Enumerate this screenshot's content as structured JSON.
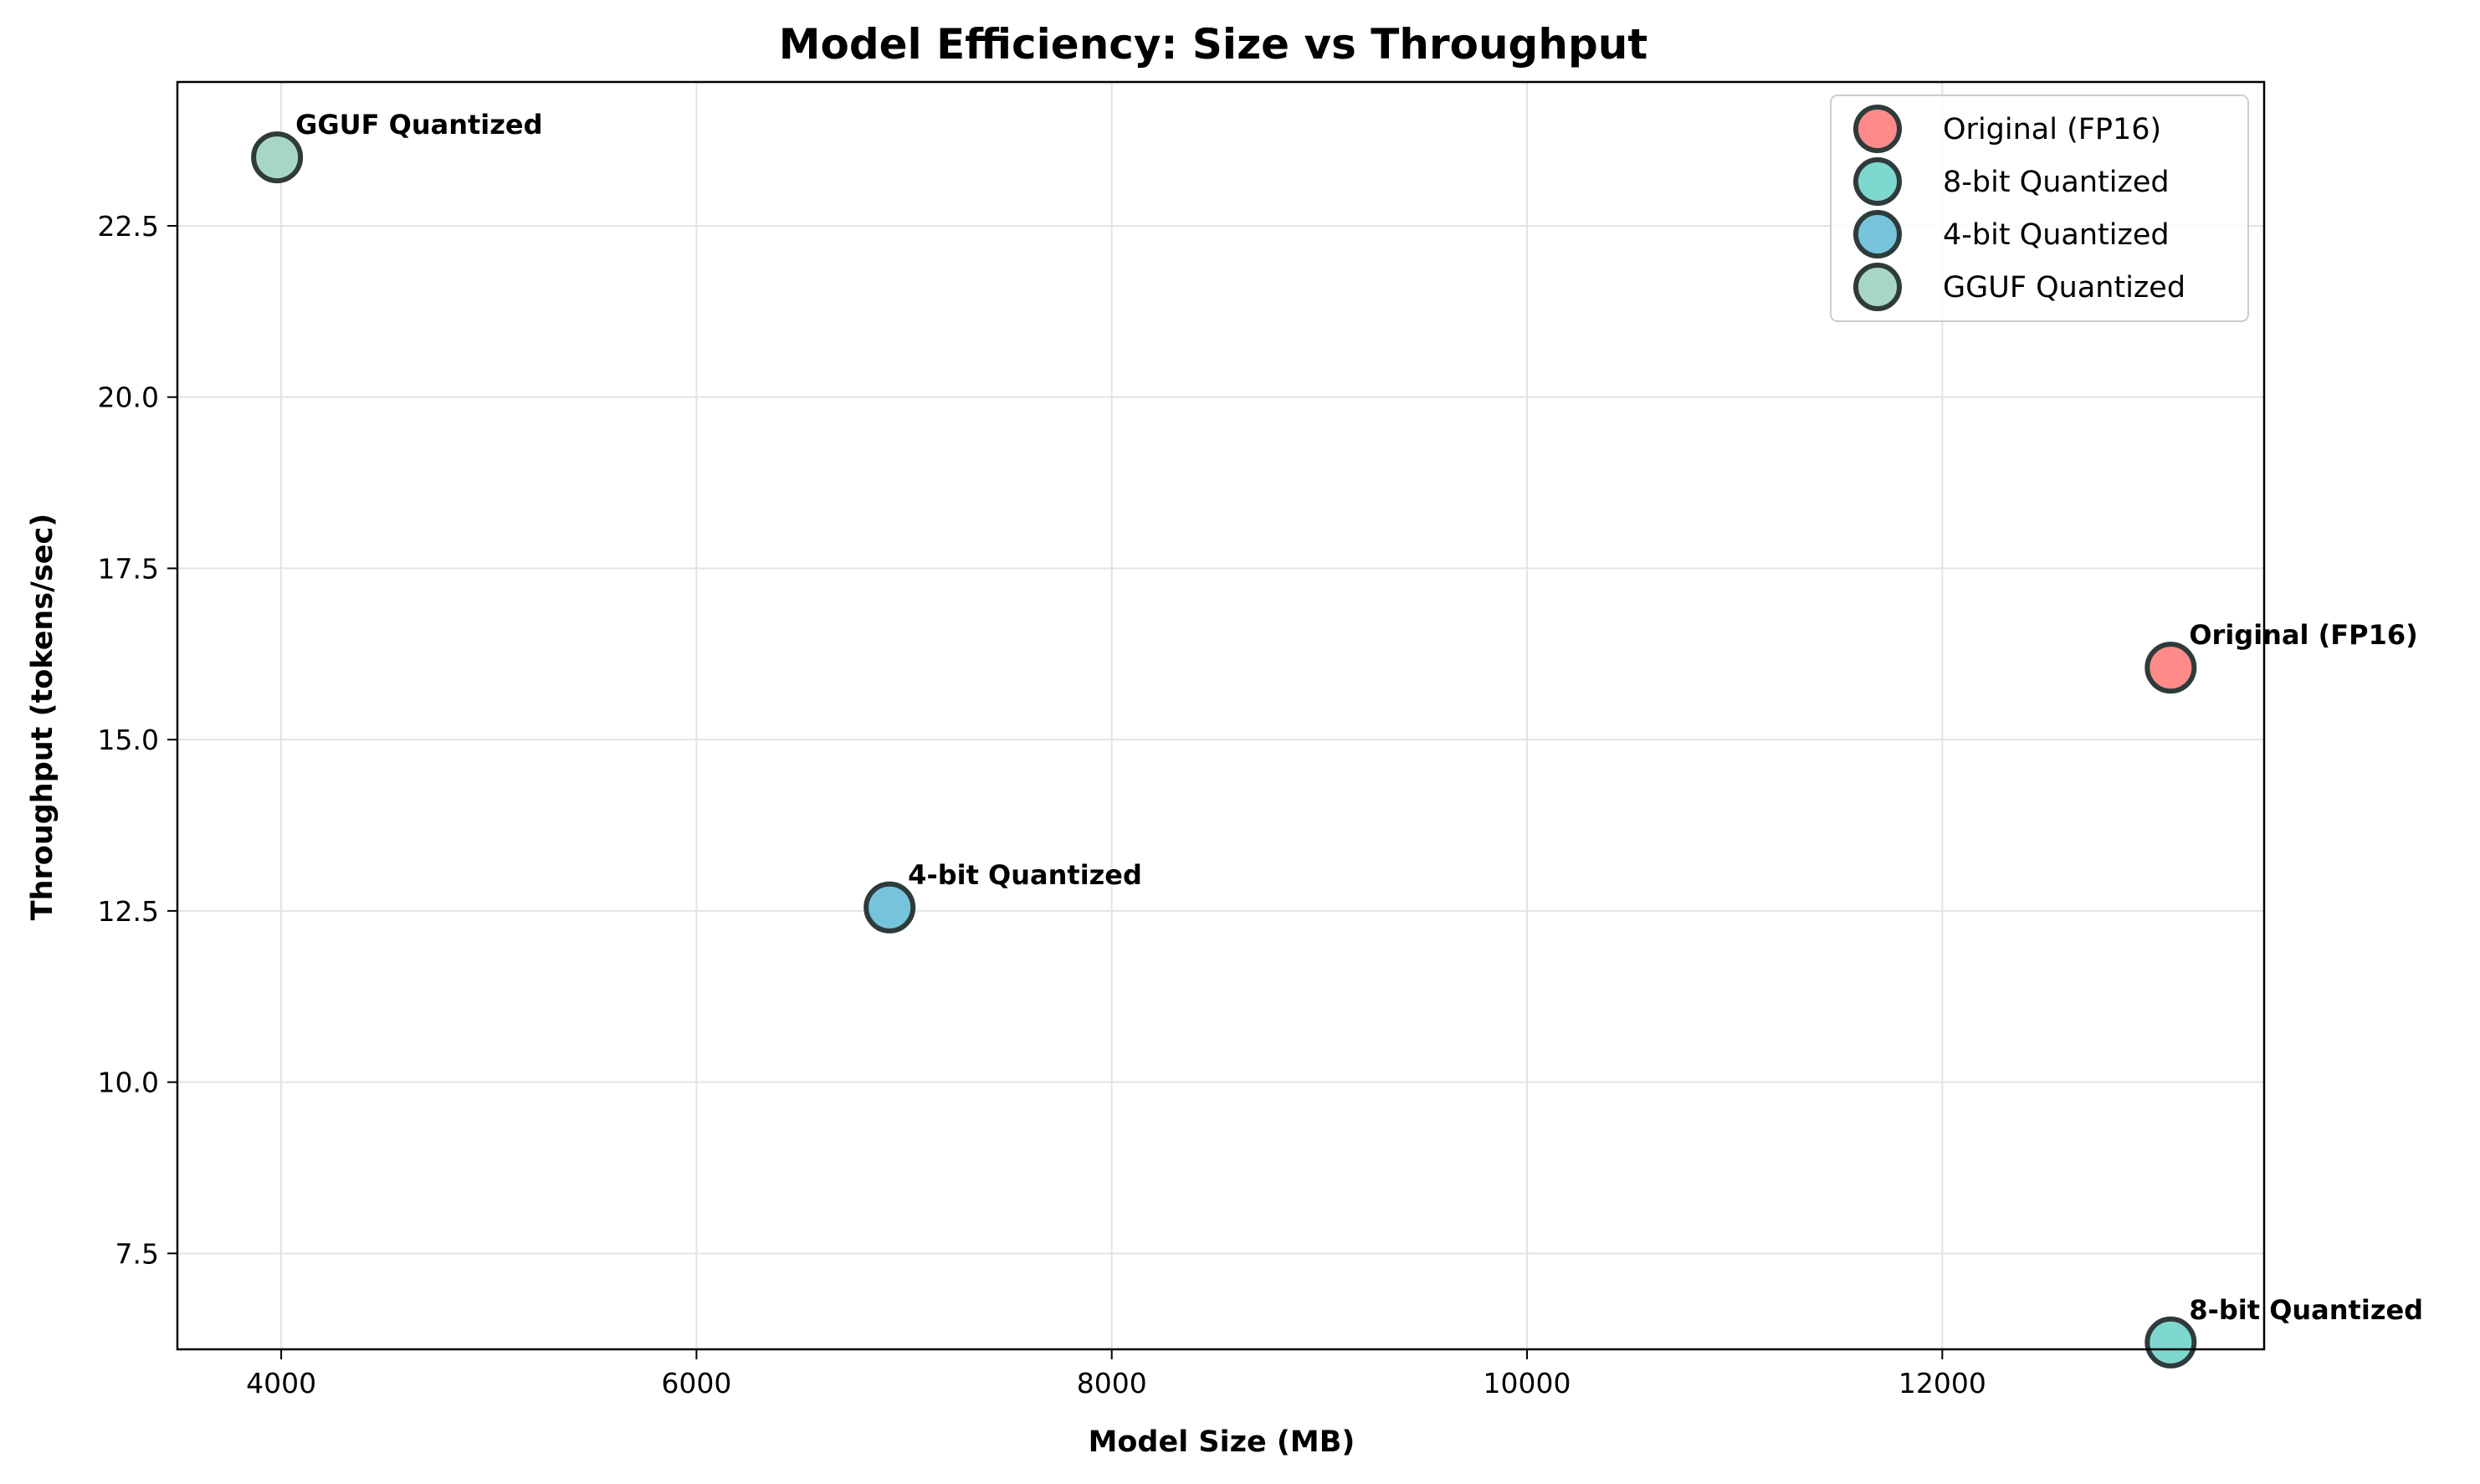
{
  "chart_data": {
    "type": "scatter",
    "title": "Model Efficiency: Size vs Throughput",
    "xlabel": "Model Size (MB)",
    "ylabel": "Throughput (tokens/sec)",
    "xlim": [
      3500,
      13550
    ],
    "ylim": [
      6.1,
      24.6
    ],
    "xticks": [
      4000,
      6000,
      8000,
      10000,
      12000
    ],
    "xtick_labels": [
      "4000",
      "6000",
      "8000",
      "10000",
      "12000"
    ],
    "yticks": [
      7.5,
      10.0,
      12.5,
      15.0,
      17.5,
      20.0,
      22.5
    ],
    "ytick_labels": [
      "7.5",
      "10.0",
      "12.5",
      "15.0",
      "17.5",
      "20.0",
      "22.5"
    ],
    "grid": true,
    "legend_position": "top-right",
    "series": [
      {
        "name": "Original (FP16)",
        "x": 13100,
        "y": 16.05,
        "color": "#ff8a8a",
        "annotation": "Original (FP16)"
      },
      {
        "name": "8-bit Quantized",
        "x": 13100,
        "y": 6.2,
        "color": "#7fd8d0",
        "annotation": "8-bit Quantized"
      },
      {
        "name": "4-bit Quantized",
        "x": 6930,
        "y": 12.55,
        "color": "#75c4dc",
        "annotation": "4-bit Quantized"
      },
      {
        "name": "GGUF Quantized",
        "x": 3980,
        "y": 23.5,
        "color": "#a8d6c4",
        "annotation": "GGUF Quantized"
      }
    ]
  }
}
